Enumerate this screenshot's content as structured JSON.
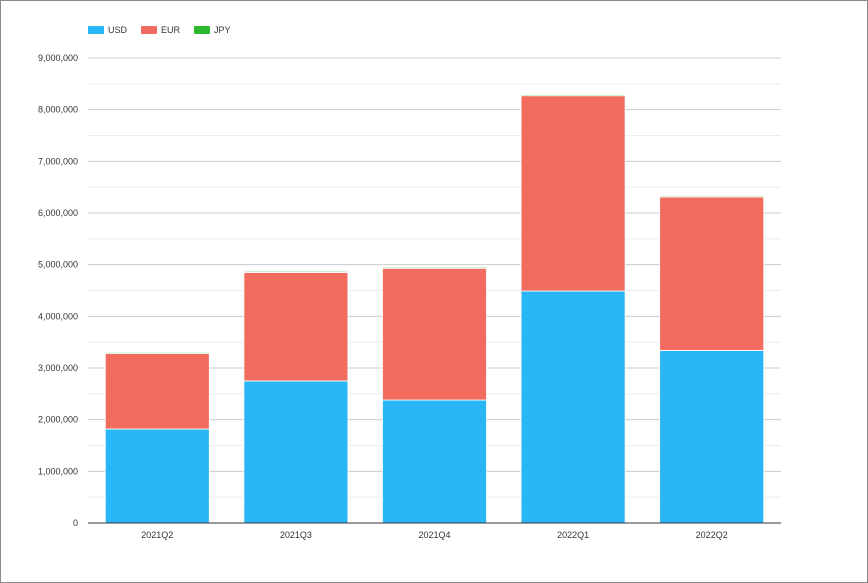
{
  "chart_data": {
    "type": "bar",
    "stacked": true,
    "categories": [
      "2021Q2",
      "2021Q3",
      "2021Q4",
      "2022Q1",
      "2022Q2"
    ],
    "series": [
      {
        "name": "USD",
        "color": "#29b6f6",
        "values": [
          1820000,
          2750000,
          2380000,
          4490000,
          3340000
        ]
      },
      {
        "name": "EUR",
        "color": "#f26b5f",
        "values": [
          1460000,
          2100000,
          2550000,
          3780000,
          2970000
        ]
      },
      {
        "name": "JPY",
        "color": "#2eb82e",
        "values": [
          20000,
          20000,
          20000,
          20000,
          20000
        ]
      }
    ],
    "ylim": [
      0,
      9000000
    ],
    "yticks": [
      "0",
      "1,000,000",
      "2,000,000",
      "3,000,000",
      "4,000,000",
      "5,000,000",
      "6,000,000",
      "7,000,000",
      "8,000,000",
      "9,000,000"
    ],
    "title": "",
    "xlabel": "",
    "ylabel": "",
    "grid": true,
    "legend_position": "top-left"
  }
}
